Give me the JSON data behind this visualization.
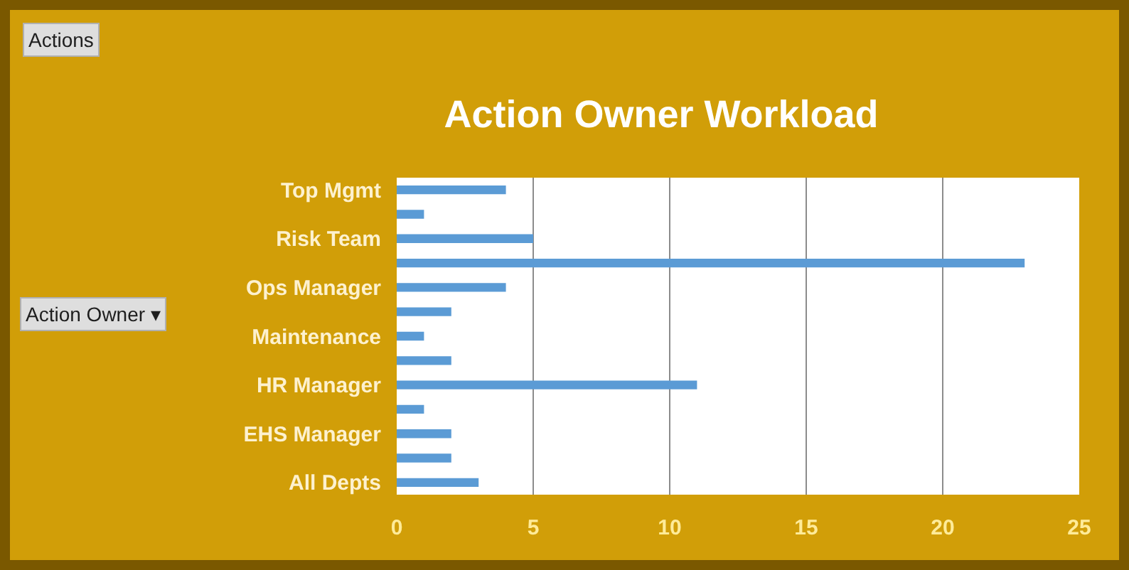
{
  "chart_data": {
    "type": "bar",
    "orientation": "horizontal",
    "title": "Action Owner Workload",
    "categories": [
      "Top Mgmt",
      null,
      "Risk Team",
      null,
      "Ops Manager",
      null,
      "Maintenance",
      null,
      "HR Manager",
      null,
      "EHS Manager",
      null,
      "All Depts"
    ],
    "values": [
      4,
      1,
      5,
      23,
      4,
      2,
      1,
      2,
      11,
      1,
      2,
      2,
      3
    ],
    "color": "#5b9bd5",
    "xlim": [
      0,
      25
    ],
    "xticks": [
      0,
      5,
      10,
      15,
      20,
      25
    ],
    "grid": "x",
    "annotations": [
      "Actions",
      "Action Owner ▾"
    ]
  }
}
